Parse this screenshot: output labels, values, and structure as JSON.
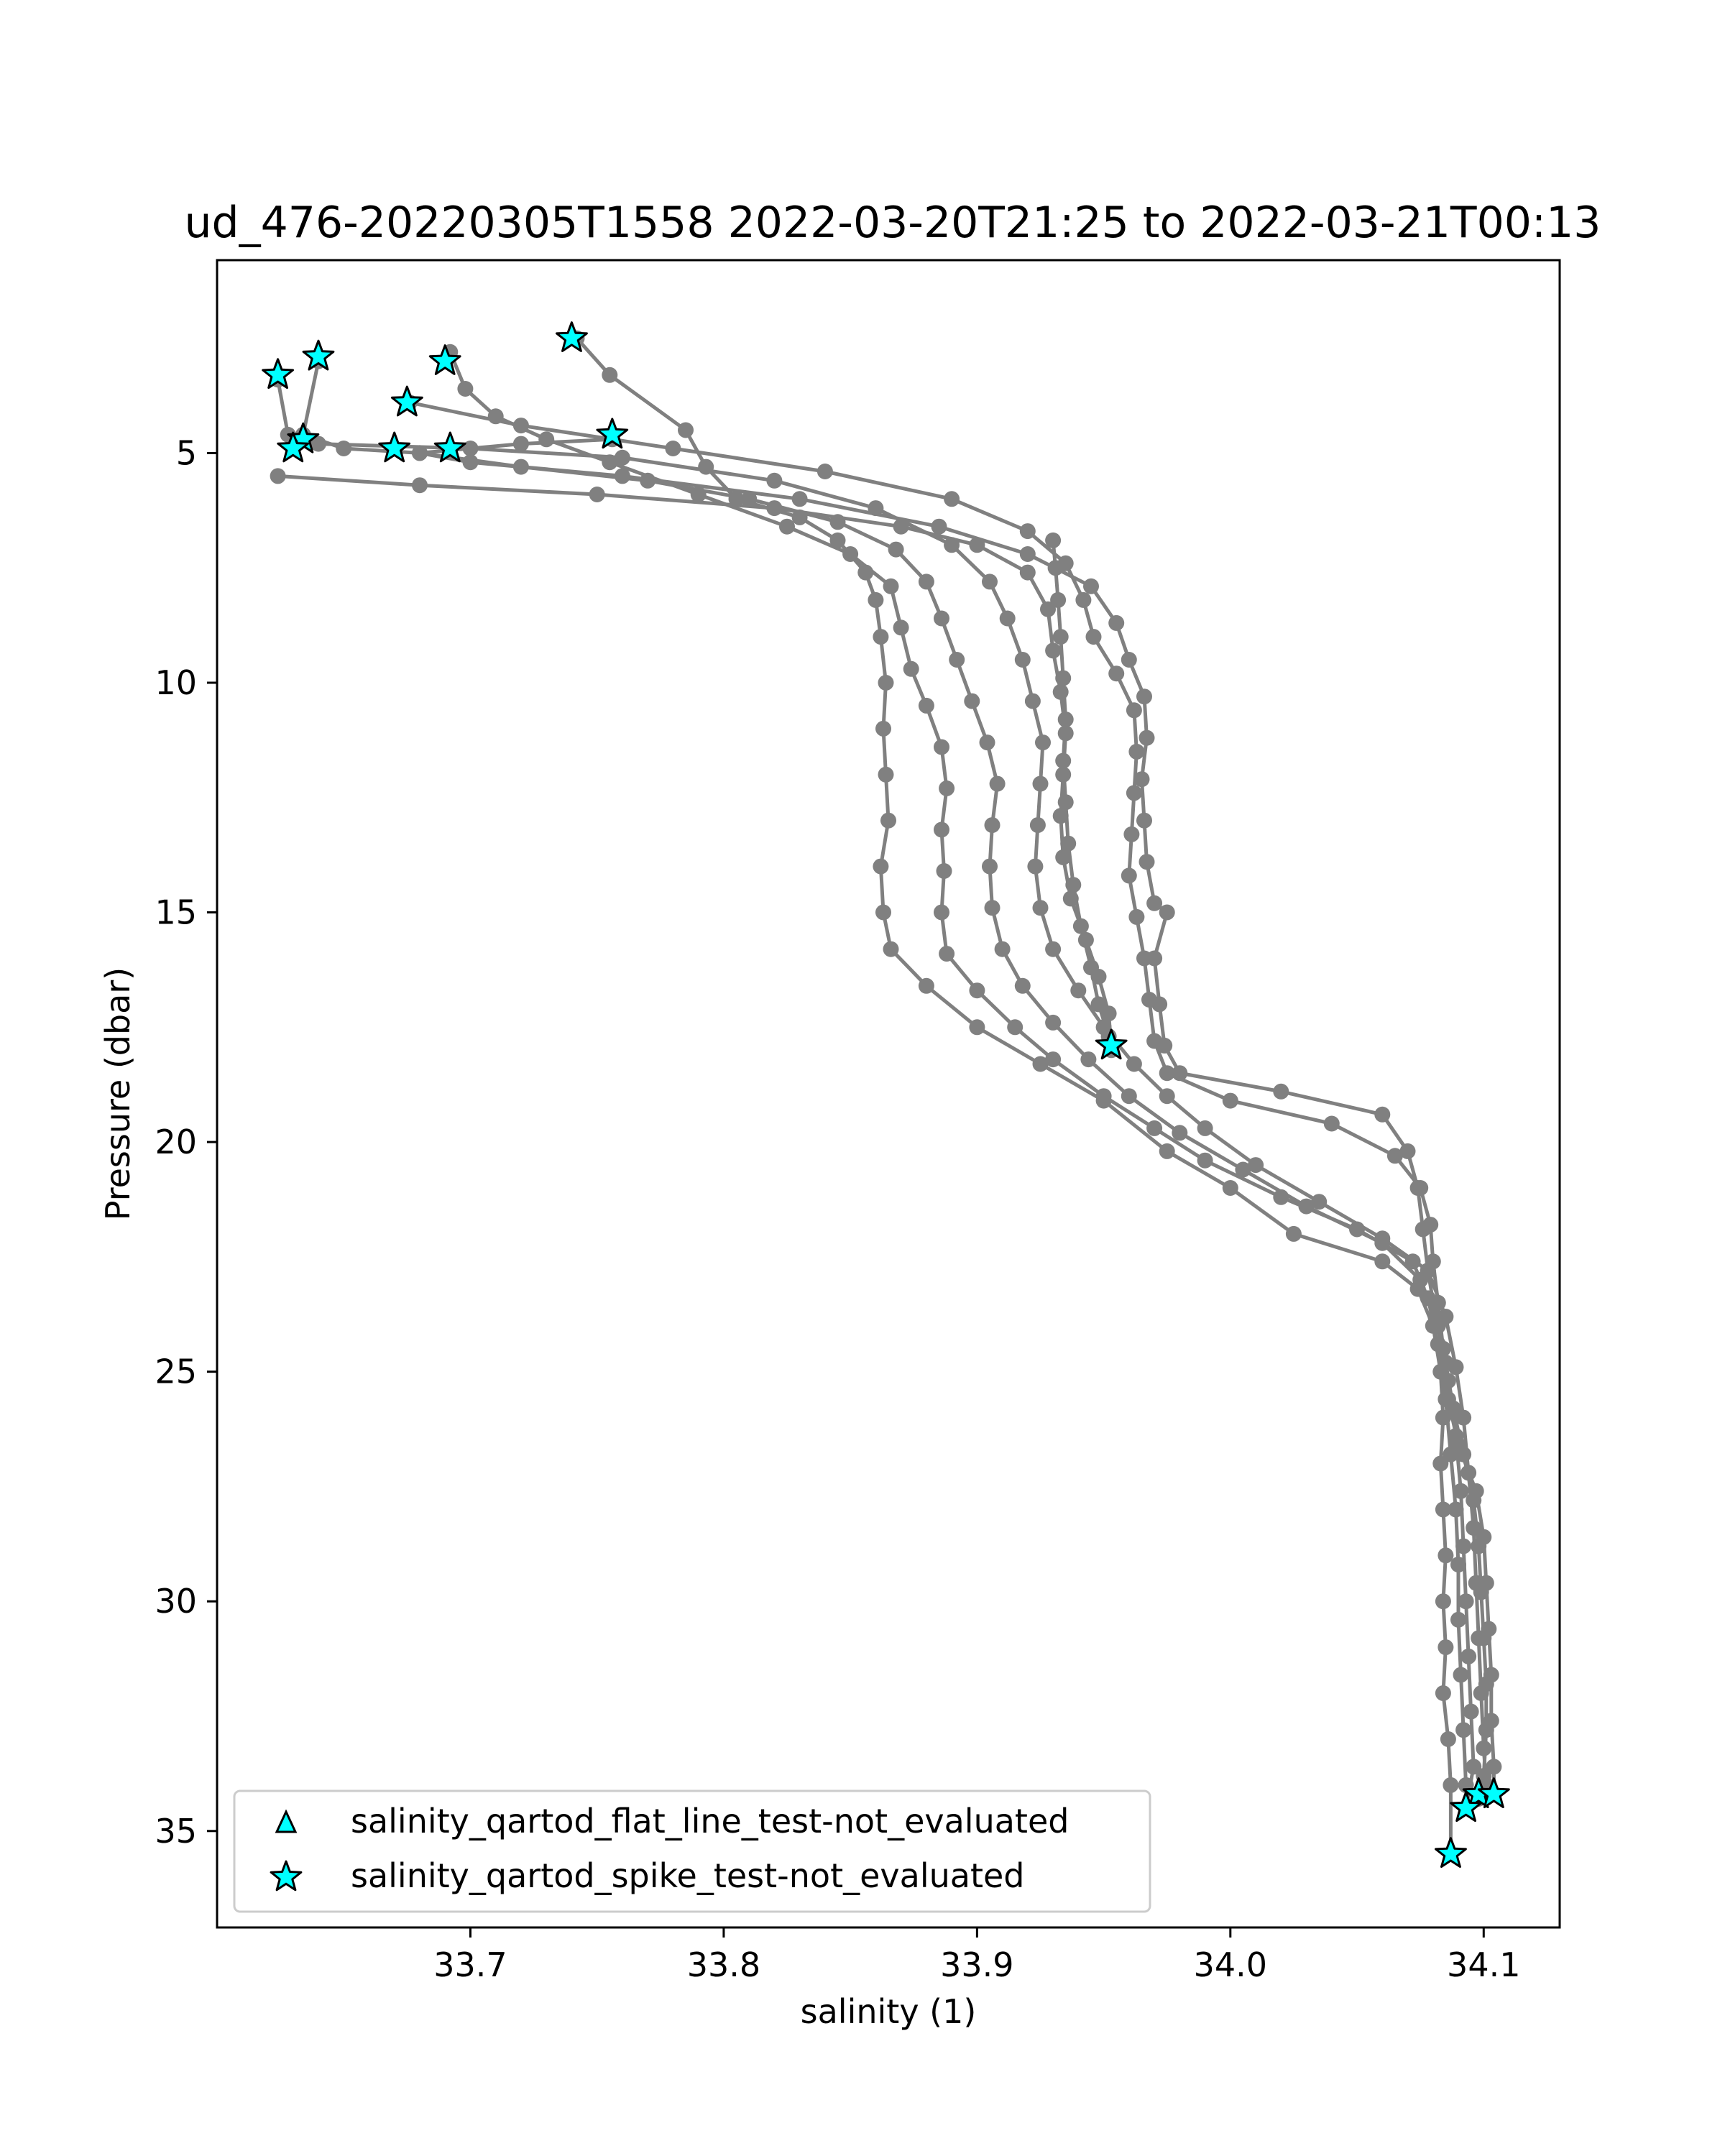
{
  "chart_data": {
    "type": "scatter",
    "title": "ud_476-20220305T1558 2022-03-20T21:25 to 2022-03-21T00:13",
    "xlabel": "salinity (1)",
    "ylabel": "Pressure (dbar)",
    "xlim": [
      33.6,
      34.13
    ],
    "ylim": [
      37.1,
      0.8
    ],
    "y_inverted": true,
    "xticks": [
      33.7,
      33.8,
      33.9,
      34.0,
      34.1
    ],
    "yticks": [
      5,
      10,
      15,
      20,
      25,
      30,
      35
    ],
    "xtick_labels": [
      "33.7",
      "33.8",
      "33.9",
      "34.0",
      "34.1"
    ],
    "ytick_labels": [
      "5",
      "10",
      "15",
      "20",
      "25",
      "30",
      "35"
    ],
    "grid": false,
    "legend_position": "lower-left",
    "colors": {
      "profile_line": "#808080",
      "flag_marker_fill": "#00ffff",
      "flag_marker_edge": "#000000"
    },
    "profiles": [
      [
        [
          33.742,
          2.5
        ],
        [
          33.755,
          3.3
        ],
        [
          33.785,
          4.5
        ],
        [
          33.793,
          5.3
        ],
        [
          33.805,
          6.0
        ],
        [
          33.83,
          6.4
        ],
        [
          33.845,
          6.9
        ],
        [
          33.856,
          7.6
        ],
        [
          33.86,
          8.2
        ],
        [
          33.862,
          9.0
        ],
        [
          33.864,
          10.0
        ],
        [
          33.863,
          11.0
        ],
        [
          33.864,
          12.0
        ],
        [
          33.865,
          13.0
        ],
        [
          33.862,
          14.0
        ],
        [
          33.863,
          15.0
        ],
        [
          33.866,
          15.8
        ],
        [
          33.88,
          16.6
        ],
        [
          33.9,
          17.5
        ],
        [
          33.925,
          18.3
        ],
        [
          33.95,
          19.1
        ],
        [
          33.975,
          20.2
        ],
        [
          34.0,
          21.0
        ],
        [
          34.025,
          22.0
        ],
        [
          34.06,
          22.6
        ],
        [
          34.074,
          23.2
        ],
        [
          34.08,
          24.0
        ],
        [
          34.083,
          25.0
        ],
        [
          34.084,
          26.0
        ],
        [
          34.083,
          27.0
        ],
        [
          34.084,
          28.0
        ],
        [
          34.085,
          29.0
        ],
        [
          34.084,
          30.0
        ],
        [
          34.085,
          31.0
        ],
        [
          34.084,
          32.0
        ],
        [
          34.086,
          33.0
        ],
        [
          34.087,
          34.0
        ],
        [
          34.087,
          35.5
        ]
      ],
      [
        [
          33.692,
          2.8
        ],
        [
          33.698,
          3.6
        ],
        [
          33.71,
          4.2
        ],
        [
          33.73,
          4.7
        ],
        [
          33.755,
          5.2
        ],
        [
          33.79,
          5.9
        ],
        [
          33.825,
          6.6
        ],
        [
          33.85,
          7.2
        ],
        [
          33.866,
          7.9
        ],
        [
          33.87,
          8.8
        ],
        [
          33.874,
          9.7
        ],
        [
          33.88,
          10.5
        ],
        [
          33.886,
          11.4
        ],
        [
          33.888,
          12.3
        ],
        [
          33.886,
          13.2
        ],
        [
          33.887,
          14.1
        ],
        [
          33.886,
          15.0
        ],
        [
          33.888,
          15.9
        ],
        [
          33.9,
          16.7
        ],
        [
          33.915,
          17.5
        ],
        [
          33.93,
          18.2
        ],
        [
          33.95,
          19.0
        ],
        [
          33.97,
          19.7
        ],
        [
          33.99,
          20.4
        ],
        [
          34.02,
          21.2
        ],
        [
          34.05,
          21.9
        ],
        [
          34.072,
          22.6
        ],
        [
          34.078,
          23.4
        ],
        [
          34.082,
          24.4
        ],
        [
          34.085,
          25.6
        ],
        [
          34.087,
          26.8
        ],
        [
          34.089,
          28.0
        ],
        [
          34.09,
          29.2
        ],
        [
          34.09,
          30.4
        ],
        [
          34.091,
          31.6
        ],
        [
          34.092,
          32.8
        ],
        [
          34.093,
          34.0
        ],
        [
          34.098,
          34.3
        ]
      ],
      [
        [
          33.64,
          3.0
        ],
        [
          33.634,
          4.6
        ],
        [
          33.65,
          4.9
        ],
        [
          33.68,
          5.0
        ],
        [
          33.72,
          5.3
        ],
        [
          33.77,
          5.6
        ],
        [
          33.81,
          6.0
        ],
        [
          33.845,
          6.5
        ],
        [
          33.868,
          7.1
        ],
        [
          33.88,
          7.8
        ],
        [
          33.886,
          8.6
        ],
        [
          33.892,
          9.5
        ],
        [
          33.898,
          10.4
        ],
        [
          33.904,
          11.3
        ],
        [
          33.908,
          12.2
        ],
        [
          33.906,
          13.1
        ],
        [
          33.905,
          14.0
        ],
        [
          33.906,
          14.9
        ],
        [
          33.91,
          15.8
        ],
        [
          33.918,
          16.6
        ],
        [
          33.93,
          17.4
        ],
        [
          33.944,
          18.2
        ],
        [
          33.96,
          19.0
        ],
        [
          33.98,
          19.8
        ],
        [
          34.005,
          20.6
        ],
        [
          34.03,
          21.4
        ],
        [
          34.06,
          22.2
        ],
        [
          34.075,
          23.0
        ],
        [
          34.082,
          24.0
        ],
        [
          34.086,
          25.2
        ],
        [
          34.089,
          26.4
        ],
        [
          34.091,
          27.6
        ],
        [
          34.092,
          28.8
        ],
        [
          34.093,
          30.0
        ],
        [
          34.094,
          31.2
        ],
        [
          34.095,
          32.4
        ],
        [
          34.096,
          33.6
        ],
        [
          34.093,
          34.5
        ]
      ],
      [
        [
          33.624,
          3.4
        ],
        [
          33.628,
          4.6
        ],
        [
          33.64,
          4.8
        ],
        [
          33.7,
          4.9
        ],
        [
          33.76,
          5.1
        ],
        [
          33.82,
          5.6
        ],
        [
          33.86,
          6.2
        ],
        [
          33.89,
          7.0
        ],
        [
          33.905,
          7.8
        ],
        [
          33.912,
          8.6
        ],
        [
          33.918,
          9.5
        ],
        [
          33.922,
          10.4
        ],
        [
          33.926,
          11.3
        ],
        [
          33.925,
          12.2
        ],
        [
          33.924,
          13.1
        ],
        [
          33.923,
          14.0
        ],
        [
          33.925,
          14.9
        ],
        [
          33.93,
          15.8
        ],
        [
          33.94,
          16.7
        ],
        [
          33.95,
          17.5
        ],
        [
          33.962,
          18.3
        ],
        [
          33.975,
          19.0
        ],
        [
          33.99,
          19.7
        ],
        [
          34.01,
          20.5
        ],
        [
          34.035,
          21.3
        ],
        [
          34.06,
          22.1
        ],
        [
          34.078,
          22.8
        ],
        [
          34.085,
          23.8
        ],
        [
          34.089,
          24.9
        ],
        [
          34.092,
          26.0
        ],
        [
          34.094,
          27.2
        ],
        [
          34.096,
          28.4
        ],
        [
          34.097,
          29.6
        ],
        [
          34.098,
          30.8
        ],
        [
          34.099,
          32.0
        ],
        [
          34.1,
          33.2
        ],
        [
          34.101,
          34.0
        ],
        [
          34.104,
          34.2
        ]
      ],
      [
        [
          33.624,
          5.5
        ],
        [
          33.68,
          5.7
        ],
        [
          33.75,
          5.9
        ],
        [
          33.82,
          6.2
        ],
        [
          33.87,
          6.6
        ],
        [
          33.9,
          7.0
        ],
        [
          33.92,
          7.6
        ],
        [
          33.928,
          8.4
        ],
        [
          33.93,
          9.3
        ],
        [
          33.933,
          10.2
        ],
        [
          33.935,
          11.1
        ],
        [
          33.934,
          12.0
        ],
        [
          33.933,
          12.9
        ],
        [
          33.934,
          13.8
        ],
        [
          33.937,
          14.7
        ],
        [
          33.943,
          15.6
        ],
        [
          33.948,
          16.4
        ],
        [
          33.952,
          17.2
        ],
        [
          33.953,
          18.0
        ]
      ],
      [
        [
          33.676,
          3.9
        ],
        [
          33.72,
          4.4
        ],
        [
          33.78,
          4.9
        ],
        [
          33.84,
          5.4
        ],
        [
          33.89,
          6.0
        ],
        [
          33.92,
          6.7
        ],
        [
          33.935,
          7.4
        ],
        [
          33.942,
          8.2
        ],
        [
          33.946,
          9.0
        ],
        [
          33.955,
          9.8
        ],
        [
          33.962,
          10.6
        ],
        [
          33.963,
          11.5
        ],
        [
          33.962,
          12.4
        ],
        [
          33.961,
          13.3
        ],
        [
          33.96,
          14.2
        ],
        [
          33.963,
          15.1
        ],
        [
          33.966,
          16.0
        ],
        [
          33.968,
          16.9
        ],
        [
          33.97,
          17.8
        ],
        [
          33.975,
          18.5
        ],
        [
          34.0,
          19.1
        ],
        [
          34.04,
          19.6
        ],
        [
          34.065,
          20.3
        ],
        [
          34.075,
          21.0
        ],
        [
          34.079,
          21.8
        ],
        [
          34.08,
          22.6
        ],
        [
          34.082,
          23.5
        ],
        [
          34.084,
          24.5
        ],
        [
          34.086,
          25.6
        ],
        [
          34.09,
          26.6
        ],
        [
          34.097,
          27.6
        ],
        [
          34.1,
          28.6
        ],
        [
          34.101,
          29.6
        ],
        [
          34.102,
          30.6
        ],
        [
          34.103,
          31.6
        ],
        [
          34.103,
          32.6
        ],
        [
          34.104,
          33.6
        ],
        [
          34.104,
          34.2
        ]
      ],
      [
        [
          33.756,
          4.7
        ],
        [
          33.72,
          4.8
        ],
        [
          33.68,
          5.0
        ],
        [
          33.7,
          5.2
        ],
        [
          33.76,
          5.5
        ],
        [
          33.83,
          6.0
        ],
        [
          33.885,
          6.6
        ],
        [
          33.92,
          7.2
        ],
        [
          33.945,
          7.9
        ],
        [
          33.955,
          8.7
        ],
        [
          33.96,
          9.5
        ],
        [
          33.966,
          10.3
        ],
        [
          33.967,
          11.2
        ],
        [
          33.965,
          12.1
        ],
        [
          33.966,
          13.0
        ],
        [
          33.967,
          13.9
        ],
        [
          33.97,
          14.8
        ],
        [
          33.975,
          15.0
        ],
        [
          33.97,
          16.0
        ],
        [
          33.972,
          17.0
        ],
        [
          33.974,
          17.9
        ],
        [
          33.98,
          18.5
        ],
        [
          34.02,
          18.9
        ],
        [
          34.06,
          19.4
        ],
        [
          34.07,
          20.2
        ],
        [
          34.074,
          21.0
        ],
        [
          34.076,
          21.9
        ],
        [
          34.078,
          22.8
        ],
        [
          34.081,
          23.8
        ],
        [
          34.085,
          24.8
        ],
        [
          34.088,
          25.8
        ],
        [
          34.092,
          26.8
        ],
        [
          34.096,
          27.8
        ],
        [
          34.098,
          28.8
        ],
        [
          34.099,
          29.8
        ],
        [
          34.1,
          30.8
        ],
        [
          34.101,
          31.8
        ],
        [
          34.101,
          32.8
        ],
        [
          34.1,
          33.8
        ],
        [
          34.098,
          34.2
        ]
      ],
      [
        [
          33.93,
          6.9
        ],
        [
          33.931,
          7.5
        ],
        [
          33.932,
          8.2
        ],
        [
          33.933,
          9.0
        ],
        [
          33.934,
          9.9
        ],
        [
          33.935,
          10.8
        ],
        [
          33.934,
          11.7
        ],
        [
          33.935,
          12.6
        ],
        [
          33.936,
          13.5
        ],
        [
          33.938,
          14.4
        ],
        [
          33.941,
          15.3
        ],
        [
          33.945,
          16.2
        ],
        [
          33.948,
          17.0
        ],
        [
          33.952,
          17.7
        ]
      ]
    ],
    "series": [
      {
        "name": "salinity_qartod_flat_line_test-not_evaluated",
        "marker": "triangle",
        "points": []
      },
      {
        "name": "salinity_qartod_spike_test-not_evaluated",
        "marker": "star",
        "points": [
          [
            33.74,
            2.5
          ],
          [
            33.69,
            3.0
          ],
          [
            33.64,
            2.9
          ],
          [
            33.624,
            3.3
          ],
          [
            33.675,
            3.9
          ],
          [
            33.756,
            4.6
          ],
          [
            33.634,
            4.7
          ],
          [
            33.63,
            4.9
          ],
          [
            33.67,
            4.9
          ],
          [
            33.692,
            4.9
          ],
          [
            33.953,
            17.9
          ],
          [
            34.098,
            34.2
          ],
          [
            34.104,
            34.2
          ],
          [
            34.093,
            34.5
          ],
          [
            34.087,
            35.5
          ]
        ]
      }
    ]
  }
}
